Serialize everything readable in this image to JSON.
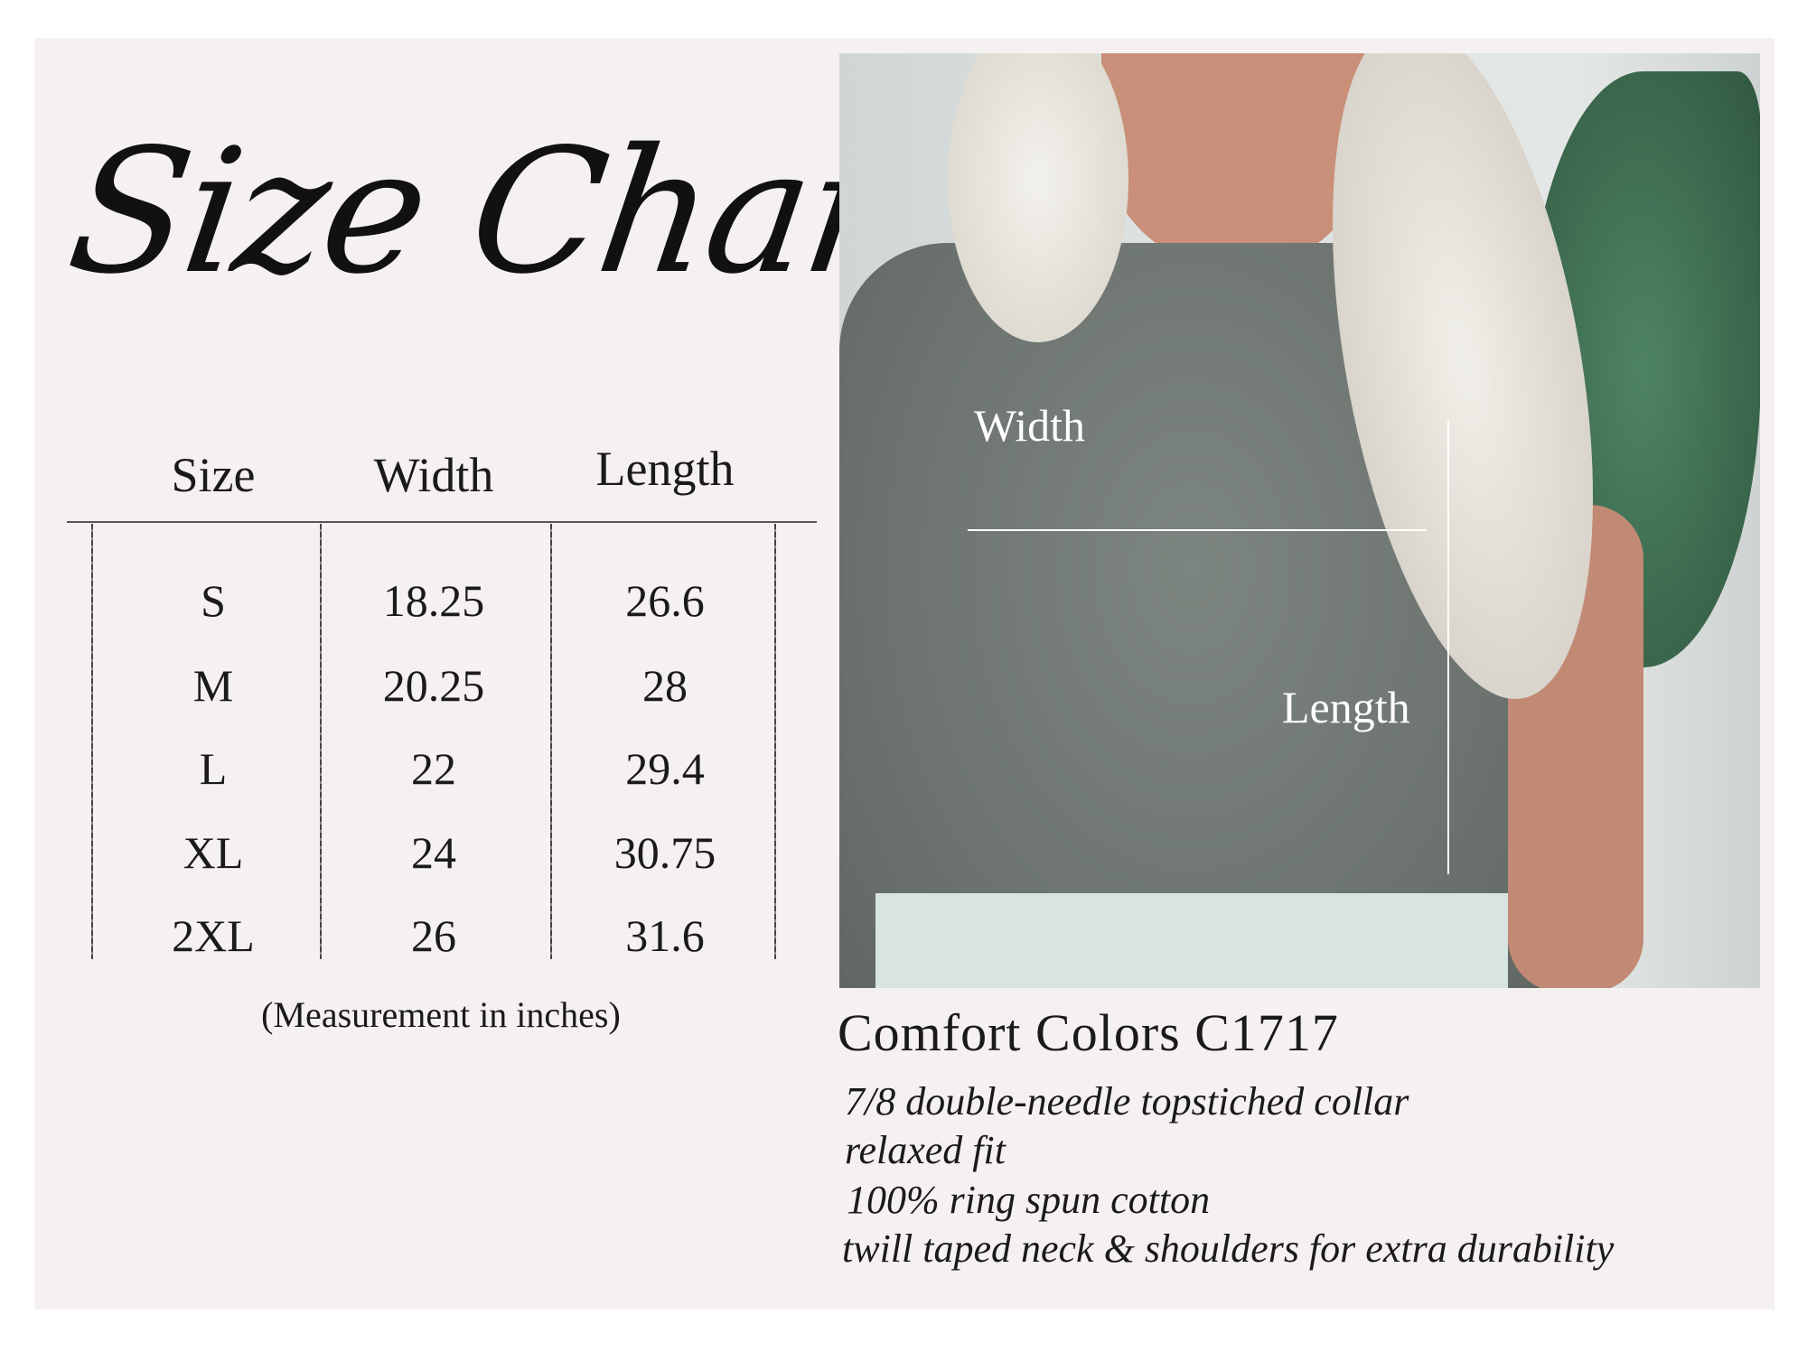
{
  "title": "Size Chart",
  "table": {
    "headers": [
      "Size",
      "Width",
      "Length"
    ],
    "rows": [
      [
        "S",
        "18.25",
        "26.6"
      ],
      [
        "M",
        "20.25",
        "28"
      ],
      [
        "L",
        "22",
        "29.4"
      ],
      [
        "XL",
        "24",
        "30.75"
      ],
      [
        "2XL",
        "26",
        "31.6"
      ]
    ],
    "note": "(Measurement in inches)"
  },
  "photo": {
    "width_label": "Width",
    "length_label": "Length"
  },
  "product": {
    "name": "Comfort Colors C1717",
    "features": [
      "7/8 double-needle topstiched collar",
      "relaxed fit",
      "100% ring spun cotton",
      "twill taped neck & shoulders for extra durability"
    ]
  }
}
